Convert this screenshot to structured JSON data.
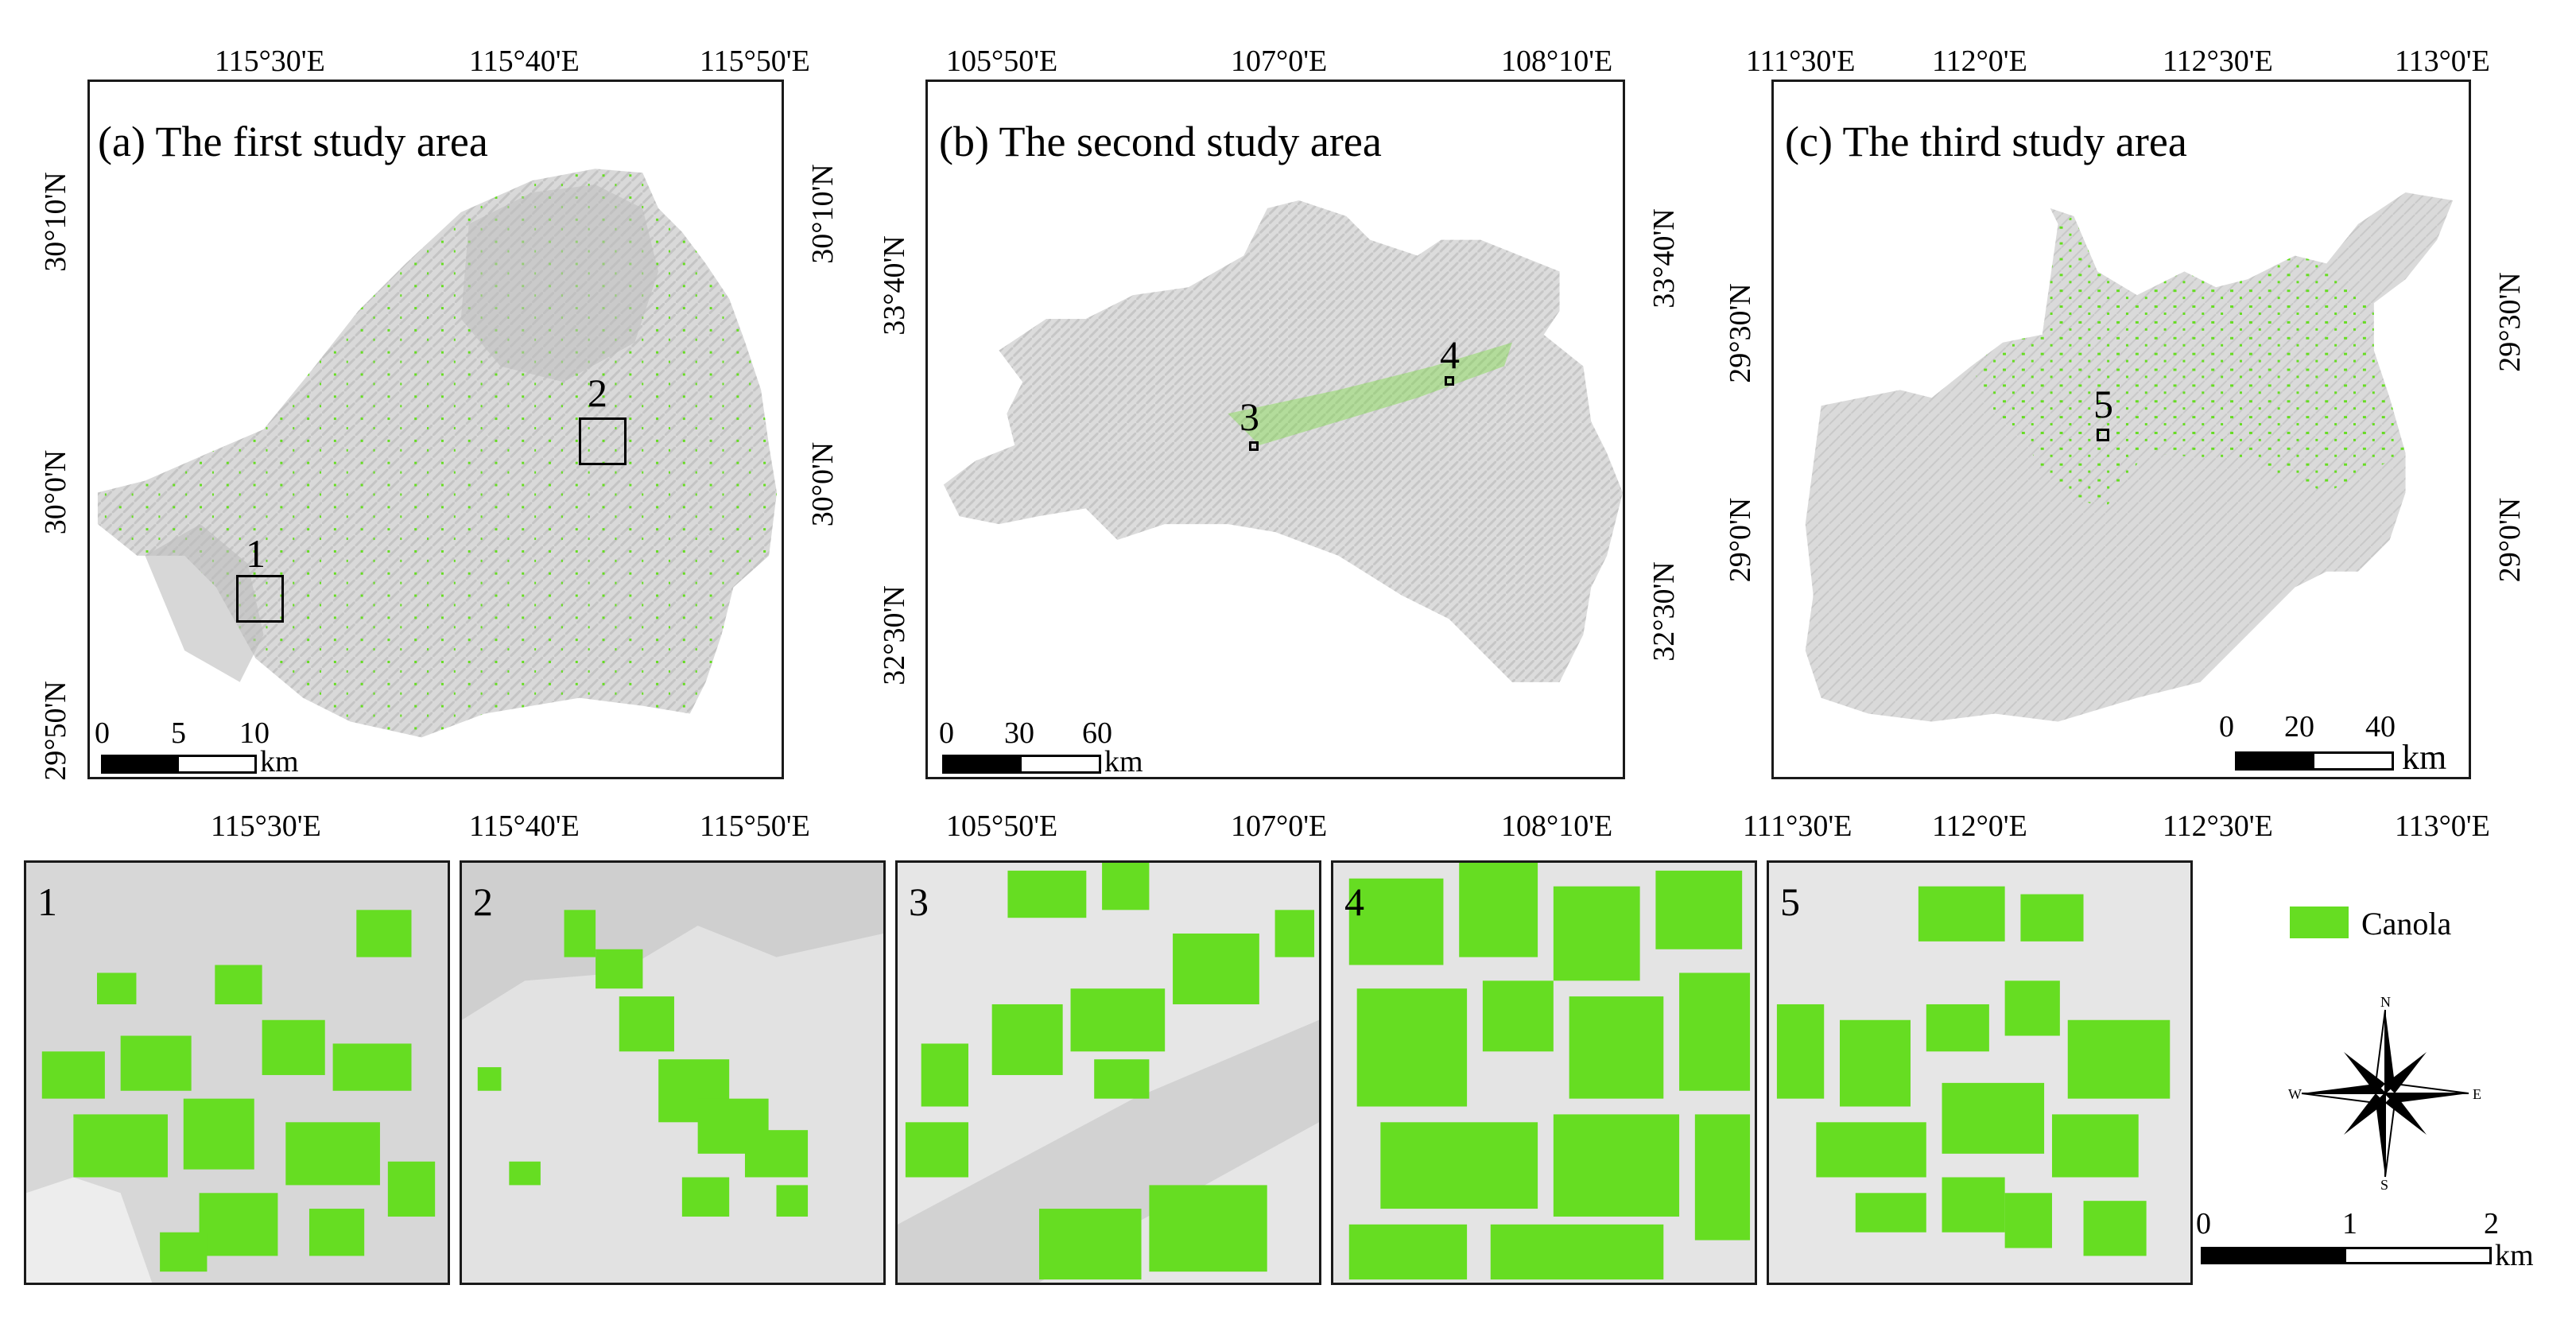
{
  "panels": {
    "a": {
      "title": "(a) The first study area",
      "top_ticks": [
        "115°30'E",
        "115°40'E",
        "115°50'E"
      ],
      "bottom_ticks": [
        "115°30'E",
        "115°40'E",
        "115°50'E"
      ],
      "left_ticks": [
        "30°10'N",
        "30°0'N",
        "29°50'N"
      ],
      "right_ticks": [
        "30°10'N",
        "30°0'N"
      ],
      "scale_labels": [
        "0",
        "5",
        "10"
      ],
      "scale_unit": "km",
      "markers": [
        "1",
        "2"
      ]
    },
    "b": {
      "title": "(b) The second study area",
      "top_ticks": [
        "105°50'E",
        "107°0'E",
        "108°10'E"
      ],
      "bottom_ticks": [
        "105°50'E",
        "107°0'E",
        "108°10'E"
      ],
      "left_ticks": [
        "33°40'N",
        "32°30'N"
      ],
      "right_ticks": [
        "33°40'N",
        "32°30'N"
      ],
      "scale_labels": [
        "0",
        "30",
        "60"
      ],
      "scale_unit": "km",
      "markers": [
        "3",
        "4"
      ]
    },
    "c": {
      "title": "(c) The third study area",
      "top_ticks": [
        "111°30'E",
        "112°0'E",
        "112°30'E",
        "113°0'E"
      ],
      "bottom_ticks": [
        "111°30'E",
        "112°0'E",
        "112°30'E",
        "113°0'E"
      ],
      "left_ticks": [
        "29°30'N",
        "29°0'N"
      ],
      "right_ticks": [
        "29°30'N",
        "29°0'N"
      ],
      "scale_labels": [
        "0",
        "20",
        "40"
      ],
      "scale_unit": "km",
      "markers": [
        "5"
      ]
    }
  },
  "insets": [
    "1",
    "2",
    "3",
    "4",
    "5"
  ],
  "legend": {
    "label": "Canola",
    "color": "#66dd22"
  },
  "compass": {
    "n": "N",
    "s": "S",
    "e": "E",
    "w": "W"
  },
  "inset_scale": {
    "labels": [
      "0",
      "1",
      "2"
    ],
    "unit": "km"
  }
}
